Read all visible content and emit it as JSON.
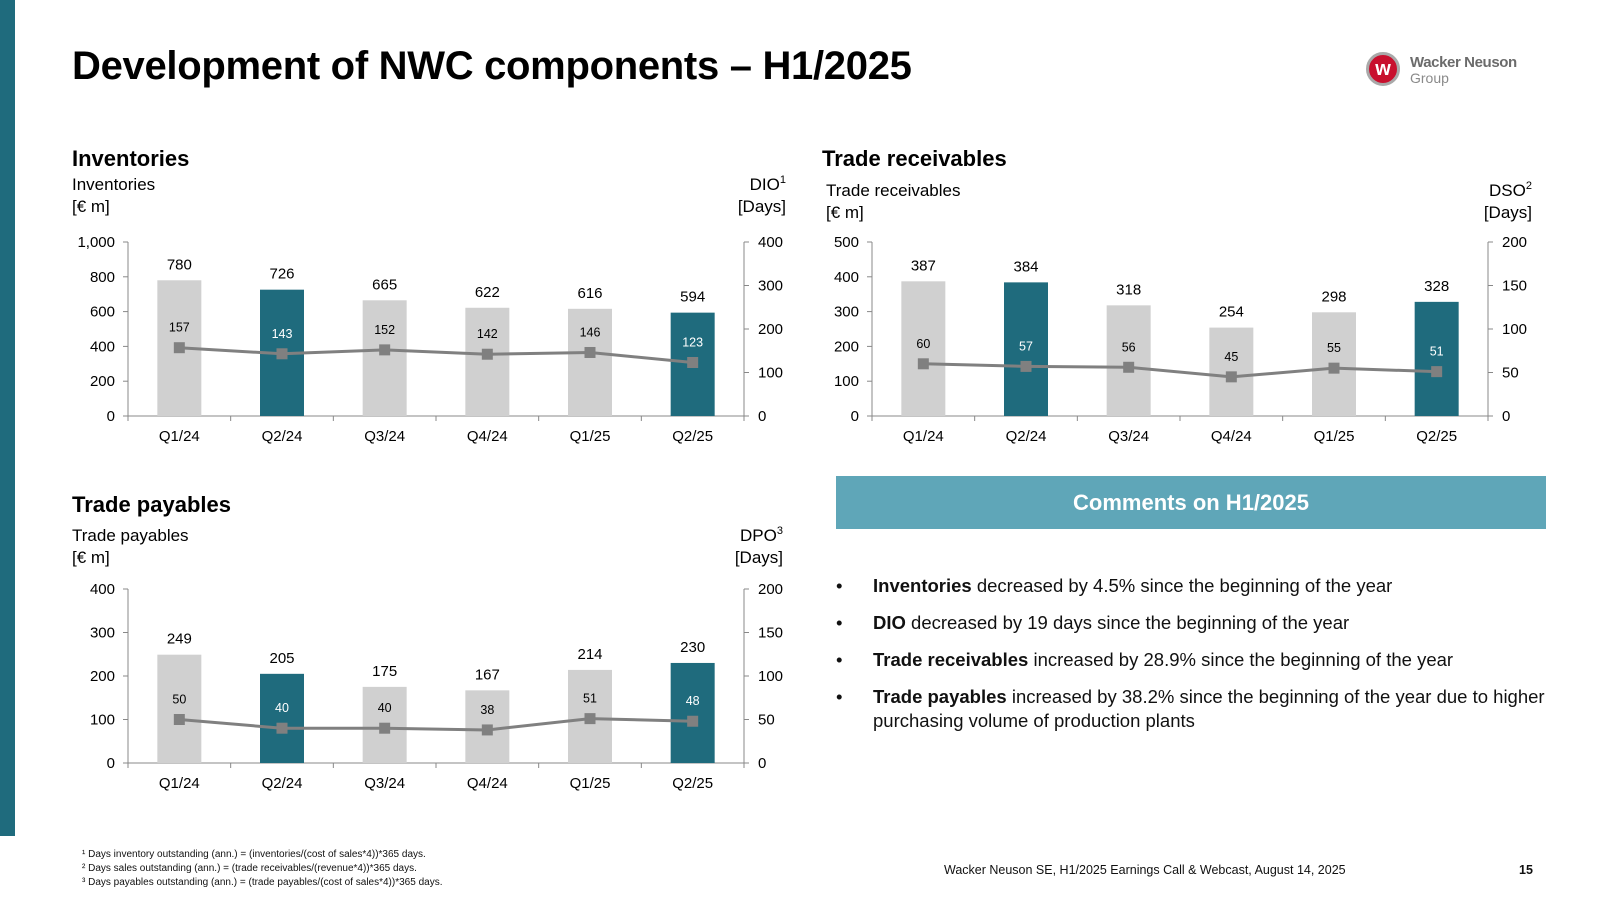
{
  "title": "Development of NWC components – H1/2025",
  "logo": {
    "name": "Wacker Neuson",
    "group": "Group",
    "mark": "w"
  },
  "colors": {
    "highlight": "#1f6b7d",
    "bar": "#d0d0d0",
    "line": "#808080",
    "banner": "#5fa6b8"
  },
  "chart_data": [
    {
      "type": "bar",
      "panel_title": "Inventories",
      "categories": [
        "Q1/24",
        "Q2/24",
        "Q3/24",
        "Q4/24",
        "Q1/25",
        "Q2/25"
      ],
      "highlight": [
        false,
        true,
        false,
        false,
        false,
        true
      ],
      "left_label": [
        "Inventories",
        "[€ m]"
      ],
      "right_label_main": "DIO",
      "right_label_sup": "1",
      "right_label_unit": "[Days]",
      "ylim": [
        0,
        1000
      ],
      "yticks": [
        "0",
        "200",
        "400",
        "600",
        "800",
        "1,000"
      ],
      "y2lim": [
        0,
        400
      ],
      "y2ticks": [
        "0",
        "100",
        "200",
        "300",
        "400"
      ],
      "series": [
        {
          "name": "Inventories",
          "type": "bar",
          "axis": "left",
          "values": [
            780,
            726,
            665,
            622,
            616,
            594
          ]
        },
        {
          "name": "DIO",
          "type": "line",
          "axis": "right",
          "values": [
            157,
            143,
            152,
            142,
            146,
            123
          ]
        }
      ]
    },
    {
      "type": "bar",
      "panel_title": "Trade receivables",
      "categories": [
        "Q1/24",
        "Q2/24",
        "Q3/24",
        "Q4/24",
        "Q1/25",
        "Q2/25"
      ],
      "highlight": [
        false,
        true,
        false,
        false,
        false,
        true
      ],
      "left_label": [
        "Trade receivables",
        "[€ m]"
      ],
      "right_label_main": "DSO",
      "right_label_sup": "2",
      "right_label_unit": "[Days]",
      "ylim": [
        0,
        500
      ],
      "yticks": [
        "0",
        "100",
        "200",
        "300",
        "400",
        "500"
      ],
      "y2lim": [
        0,
        200
      ],
      "y2ticks": [
        "0",
        "50",
        "100",
        "150",
        "200"
      ],
      "series": [
        {
          "name": "Trade receivables",
          "type": "bar",
          "axis": "left",
          "values": [
            387,
            384,
            318,
            254,
            298,
            328
          ]
        },
        {
          "name": "DSO",
          "type": "line",
          "axis": "right",
          "values": [
            60,
            57,
            56,
            45,
            55,
            51
          ]
        }
      ]
    },
    {
      "type": "bar",
      "panel_title": "Trade payables",
      "categories": [
        "Q1/24",
        "Q2/24",
        "Q3/24",
        "Q4/24",
        "Q1/25",
        "Q2/25"
      ],
      "highlight": [
        false,
        true,
        false,
        false,
        false,
        true
      ],
      "left_label": [
        "Trade payables",
        "[€ m]"
      ],
      "right_label_main": "DPO",
      "right_label_sup": "3",
      "right_label_unit": "[Days]",
      "ylim": [
        0,
        400
      ],
      "yticks": [
        "0",
        "100",
        "200",
        "300",
        "400"
      ],
      "y2lim": [
        0,
        200
      ],
      "y2ticks": [
        "0",
        "50",
        "100",
        "150",
        "200"
      ],
      "series": [
        {
          "name": "Trade payables",
          "type": "bar",
          "axis": "left",
          "values": [
            249,
            205,
            175,
            167,
            214,
            230
          ]
        },
        {
          "name": "DPO",
          "type": "line",
          "axis": "right",
          "values": [
            50,
            40,
            40,
            38,
            51,
            48
          ]
        }
      ]
    }
  ],
  "comments": {
    "header": "Comments on H1/2025",
    "bullet": "•",
    "items": [
      {
        "bold": "Inventories",
        "text": " decreased by 4.5% since the beginning of the year"
      },
      {
        "bold": "DIO",
        "text": " decreased by 19 days since the beginning of the year"
      },
      {
        "bold": "Trade receivables",
        "text": " increased by 28.9% since the beginning of the year"
      },
      {
        "bold": "Trade payables",
        "text": " increased by 38.2% since the beginning of the year due to higher purchasing volume of production plants"
      }
    ]
  },
  "footnotes": [
    "¹ Days inventory outstanding (ann.) = (inventories/(cost of sales*4))*365 days.",
    "² Days sales outstanding (ann.) = (trade receivables/(revenue*4))*365 days.",
    "³ Days payables outstanding (ann.) = (trade payables/(cost of sales*4))*365 days."
  ],
  "footer": {
    "source": "Wacker Neuson SE, H1/2025 Earnings Call & Webcast, August 14, 2025",
    "page": "15"
  }
}
